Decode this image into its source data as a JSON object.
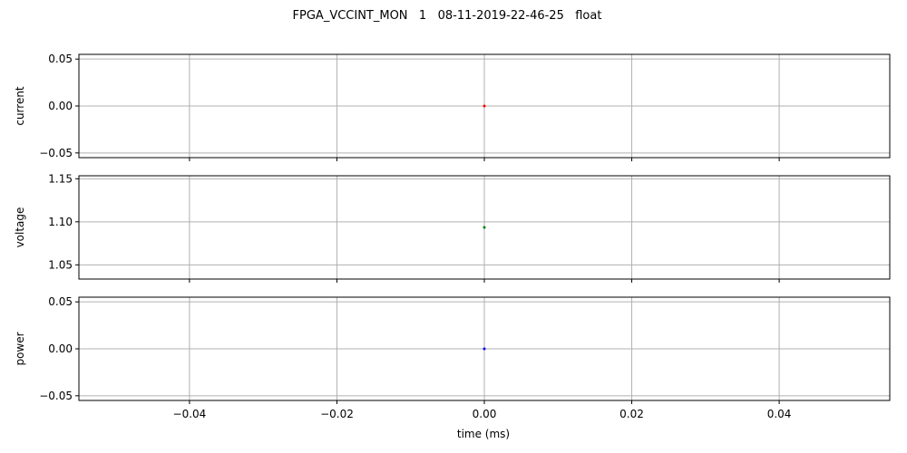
{
  "chart_data": {
    "type": "scatter",
    "title": "FPGA_VCCINT_MON   1   08-11-2019-22-46-25   float",
    "xlabel": "time (ms)",
    "xlim": [
      -0.055,
      0.055
    ],
    "xticks": [
      -0.04,
      -0.02,
      0.0,
      0.02,
      0.04
    ],
    "xtick_labels": [
      "−0.04",
      "−0.02",
      "0.00",
      "0.02",
      "0.04"
    ],
    "grid": true,
    "subplots": [
      {
        "id": "current",
        "ylabel": "current",
        "ylim": [
          -0.055,
          0.055
        ],
        "yticks": [
          -0.05,
          0.0,
          0.05
        ],
        "ytick_labels": [
          "−0.05",
          "0.00",
          "0.05"
        ],
        "color": "#ff0000",
        "points": [
          {
            "x": 0.0,
            "y": 0.0
          }
        ]
      },
      {
        "id": "voltage",
        "ylabel": "voltage",
        "ylim": [
          1.0335,
          1.1535
        ],
        "yticks": [
          1.05,
          1.1,
          1.15
        ],
        "ytick_labels": [
          "1.05",
          "1.10",
          "1.15"
        ],
        "color": "#008000",
        "points": [
          {
            "x": 0.0,
            "y": 1.0935
          }
        ]
      },
      {
        "id": "power",
        "ylabel": "power",
        "ylim": [
          -0.055,
          0.055
        ],
        "yticks": [
          -0.05,
          0.0,
          0.05
        ],
        "ytick_labels": [
          "−0.05",
          "0.00",
          "0.05"
        ],
        "color": "#0000ff",
        "points": [
          {
            "x": 0.0,
            "y": 0.0
          }
        ]
      }
    ]
  }
}
